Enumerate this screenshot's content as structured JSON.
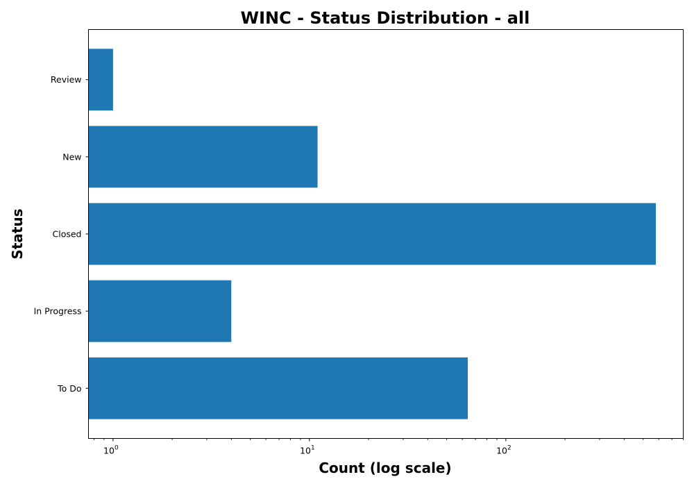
{
  "chart_data": {
    "type": "bar",
    "orientation": "horizontal",
    "title": "WINC - Status Distribution - all",
    "xlabel": "Count (log scale)",
    "ylabel": "Status",
    "x_scale": "log",
    "xlim": [
      0.75,
      800
    ],
    "categories": [
      "To Do",
      "In Progress",
      "Closed",
      "New",
      "Review"
    ],
    "values": [
      64,
      4,
      580,
      11,
      1
    ],
    "x_ticks": [
      1,
      10,
      100
    ],
    "x_tick_labels": [
      {
        "base": "10",
        "exp": "0"
      },
      {
        "base": "10",
        "exp": "1"
      },
      {
        "base": "10",
        "exp": "2"
      }
    ],
    "bar_color": "#1f77b4",
    "grid": false,
    "legend": "none"
  }
}
